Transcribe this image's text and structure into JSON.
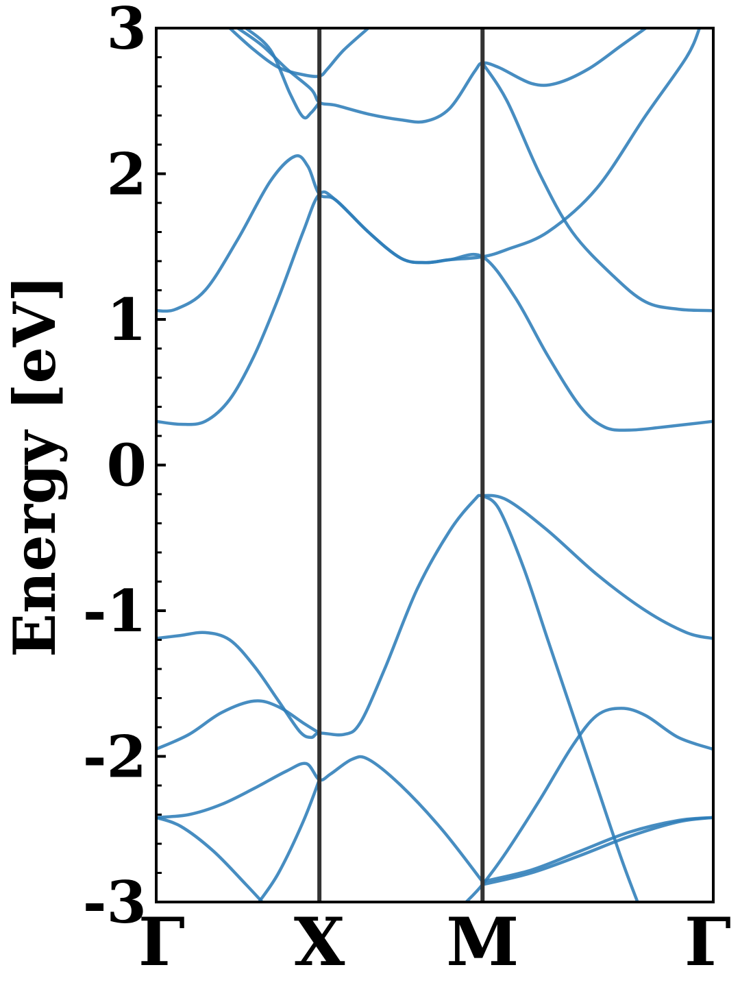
{
  "chart_data": {
    "type": "line",
    "title": "",
    "xlabel": "",
    "ylabel": "Energy [eV]",
    "ylim": [
      -3,
      3
    ],
    "xlim": [
      0,
      3.4142
    ],
    "yticks": [
      {
        "value": 3,
        "label": "3"
      },
      {
        "value": 2,
        "label": "2"
      },
      {
        "value": 1,
        "label": "1"
      },
      {
        "value": 0,
        "label": "0"
      },
      {
        "value": -1,
        "label": "-1"
      },
      {
        "value": -2,
        "label": "-2"
      },
      {
        "value": -3,
        "label": "-3"
      }
    ],
    "xticks": [
      {
        "value": 0,
        "label": "Γ"
      },
      {
        "value": 1,
        "label": "X"
      },
      {
        "value": 2,
        "label": "M"
      },
      {
        "value": 3.4142,
        "label": "Γ"
      }
    ],
    "kpoint_lines": [
      1,
      2
    ],
    "grid": false,
    "legend": "none",
    "series_color": "#2E7DB8",
    "series": [
      {
        "points": [
          [
            0,
            1.06
          ],
          [
            0.12,
            1.07
          ],
          [
            0.3,
            1.2
          ],
          [
            0.5,
            1.55
          ],
          [
            0.7,
            1.95
          ],
          [
            0.85,
            2.12
          ],
          [
            0.93,
            2.05
          ],
          [
            1,
            1.86
          ],
          [
            1.1,
            1.82
          ],
          [
            1.3,
            1.6
          ],
          [
            1.5,
            1.42
          ],
          [
            1.65,
            1.39
          ],
          [
            1.8,
            1.41
          ],
          [
            2,
            1.43
          ],
          [
            2.15,
            1.48
          ],
          [
            2.4,
            1.6
          ],
          [
            2.7,
            1.9
          ],
          [
            3.0,
            2.4
          ],
          [
            3.25,
            2.8
          ],
          [
            3.33,
            3.0
          ]
        ]
      },
      {
        "points": [
          [
            0,
            0.3
          ],
          [
            0.15,
            0.28
          ],
          [
            0.3,
            0.3
          ],
          [
            0.45,
            0.45
          ],
          [
            0.6,
            0.75
          ],
          [
            0.75,
            1.15
          ],
          [
            0.9,
            1.6
          ],
          [
            1,
            1.86
          ],
          [
            1.1,
            1.82
          ],
          [
            1.3,
            1.6
          ],
          [
            1.5,
            1.42
          ],
          [
            1.65,
            1.39
          ],
          [
            1.8,
            1.41
          ],
          [
            2,
            1.43
          ],
          [
            2.2,
            1.15
          ],
          [
            2.4,
            0.75
          ],
          [
            2.6,
            0.4
          ],
          [
            2.75,
            0.26
          ],
          [
            2.9,
            0.24
          ],
          [
            3.1,
            0.26
          ],
          [
            3.41,
            0.3
          ]
        ]
      },
      {
        "points": [
          [
            0.45,
            3.0
          ],
          [
            0.6,
            2.85
          ],
          [
            0.75,
            2.73
          ],
          [
            0.9,
            2.68
          ],
          [
            1,
            2.67
          ],
          [
            1.05,
            2.72
          ],
          [
            1.15,
            2.85
          ],
          [
            1.3,
            3.0
          ]
        ]
      },
      {
        "points": [
          [
            0.5,
            3.0
          ],
          [
            0.65,
            2.88
          ],
          [
            0.8,
            2.72
          ],
          [
            0.95,
            2.58
          ],
          [
            1,
            2.49
          ],
          [
            1.1,
            2.47
          ],
          [
            1.3,
            2.41
          ],
          [
            1.5,
            2.37
          ],
          [
            1.65,
            2.36
          ],
          [
            1.8,
            2.45
          ],
          [
            1.95,
            2.7
          ],
          [
            2,
            2.76
          ],
          [
            2.1,
            2.73
          ],
          [
            2.3,
            2.62
          ],
          [
            2.45,
            2.62
          ],
          [
            2.65,
            2.72
          ],
          [
            2.85,
            2.88
          ],
          [
            3.0,
            3.0
          ]
        ]
      },
      {
        "points": [
          [
            0.55,
            3.0
          ],
          [
            0.7,
            2.85
          ],
          [
            0.82,
            2.55
          ],
          [
            0.9,
            2.39
          ],
          [
            0.95,
            2.42
          ],
          [
            1,
            2.49
          ]
        ]
      },
      {
        "points": [
          [
            2,
            2.76
          ],
          [
            2.15,
            2.5
          ],
          [
            2.35,
            2.0
          ],
          [
            2.55,
            1.6
          ],
          [
            2.8,
            1.3
          ],
          [
            3.0,
            1.12
          ],
          [
            3.2,
            1.07
          ],
          [
            3.41,
            1.06
          ]
        ]
      },
      {
        "points": [
          [
            0,
            -1.19
          ],
          [
            0.15,
            -1.17
          ],
          [
            0.3,
            -1.15
          ],
          [
            0.45,
            -1.2
          ],
          [
            0.6,
            -1.38
          ],
          [
            0.75,
            -1.62
          ],
          [
            0.88,
            -1.83
          ],
          [
            0.95,
            -1.87
          ],
          [
            1,
            -1.84
          ],
          [
            1.15,
            -1.85
          ],
          [
            1.25,
            -1.77
          ],
          [
            1.4,
            -1.4
          ],
          [
            1.6,
            -0.85
          ],
          [
            1.8,
            -0.45
          ],
          [
            1.95,
            -0.24
          ],
          [
            2,
            -0.21
          ],
          [
            2.15,
            -0.24
          ],
          [
            2.4,
            -0.45
          ],
          [
            2.7,
            -0.75
          ],
          [
            3.0,
            -1.0
          ],
          [
            3.25,
            -1.15
          ],
          [
            3.41,
            -1.19
          ]
        ]
      },
      {
        "points": [
          [
            0,
            -1.95
          ],
          [
            0.2,
            -1.85
          ],
          [
            0.4,
            -1.7
          ],
          [
            0.6,
            -1.62
          ],
          [
            0.75,
            -1.66
          ],
          [
            0.9,
            -1.77
          ],
          [
            1,
            -1.84
          ]
        ]
      },
      {
        "points": [
          [
            2,
            -0.21
          ],
          [
            2.1,
            -0.3
          ],
          [
            2.25,
            -0.7
          ],
          [
            2.4,
            -1.2
          ],
          [
            2.55,
            -1.7
          ],
          [
            2.7,
            -2.2
          ],
          [
            2.85,
            -2.7
          ],
          [
            2.95,
            -3.0
          ]
        ]
      },
      {
        "points": [
          [
            0,
            -2.42
          ],
          [
            0.2,
            -2.4
          ],
          [
            0.4,
            -2.33
          ],
          [
            0.6,
            -2.22
          ],
          [
            0.8,
            -2.1
          ],
          [
            0.92,
            -2.05
          ],
          [
            1,
            -2.16
          ],
          [
            1.07,
            -2.12
          ],
          [
            1.2,
            -2.02
          ],
          [
            1.3,
            -2.02
          ],
          [
            1.5,
            -2.2
          ],
          [
            1.75,
            -2.5
          ],
          [
            2,
            -2.86
          ]
        ]
      },
      {
        "points": [
          [
            0.63,
            -3.0
          ],
          [
            0.75,
            -2.8
          ],
          [
            0.9,
            -2.45
          ],
          [
            1,
            -2.16
          ]
        ]
      },
      {
        "points": [
          [
            0,
            -2.42
          ],
          [
            0.15,
            -2.48
          ],
          [
            0.35,
            -2.65
          ],
          [
            0.55,
            -2.88
          ],
          [
            0.65,
            -3.0
          ]
        ]
      },
      {
        "points": [
          [
            1.9,
            -3.0
          ],
          [
            2,
            -2.88
          ],
          [
            2.15,
            -2.65
          ],
          [
            2.35,
            -2.3
          ],
          [
            2.55,
            -1.93
          ],
          [
            2.7,
            -1.72
          ],
          [
            2.85,
            -1.67
          ],
          [
            3.0,
            -1.72
          ],
          [
            3.2,
            -1.87
          ],
          [
            3.41,
            -1.95
          ]
        ]
      },
      {
        "points": [
          [
            2,
            -2.86
          ],
          [
            2.3,
            -2.78
          ],
          [
            2.6,
            -2.65
          ],
          [
            2.9,
            -2.52
          ],
          [
            3.2,
            -2.44
          ],
          [
            3.41,
            -2.42
          ]
        ]
      },
      {
        "points": [
          [
            2,
            -2.88
          ],
          [
            2.3,
            -2.8
          ],
          [
            2.6,
            -2.68
          ],
          [
            2.9,
            -2.55
          ],
          [
            3.2,
            -2.45
          ],
          [
            3.41,
            -2.42
          ]
        ]
      }
    ]
  }
}
